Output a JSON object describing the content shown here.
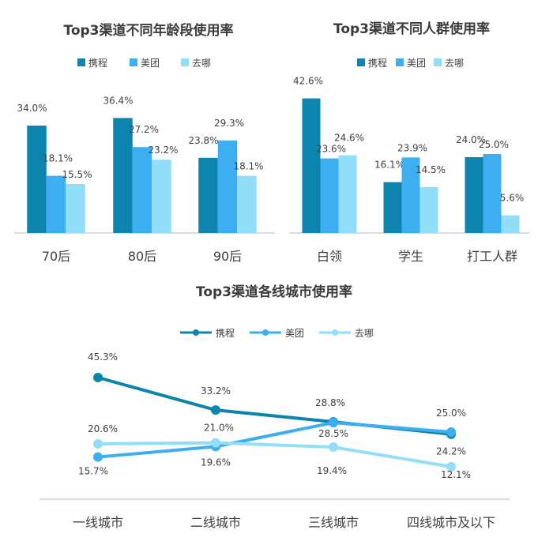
{
  "colors": {
    "ctrip": "#0D84AE",
    "meituan": "#3DAEF0",
    "qunar": "#92DDF7"
  },
  "chart_data": [
    {
      "type": "bar",
      "title": "Top3渠道不同年龄段使用率",
      "categories": [
        "70后",
        "80后",
        "90后"
      ],
      "ylim": [
        0,
        50
      ],
      "series": [
        {
          "name": "携程",
          "values": [
            34.0,
            36.4,
            23.8
          ],
          "labels": [
            "34.0%",
            "36.4%",
            "23.8%"
          ]
        },
        {
          "name": "美团",
          "values": [
            18.1,
            27.2,
            29.3
          ],
          "labels": [
            "18.1%",
            "27.2%",
            "29.3%"
          ]
        },
        {
          "name": "去哪",
          "values": [
            15.5,
            23.2,
            18.1
          ],
          "labels": [
            "15.5%",
            "23.2%",
            "18.1%"
          ]
        }
      ]
    },
    {
      "type": "bar",
      "title": "Top3渠道不同人群使用率",
      "categories": [
        "白领",
        "学生",
        "打工人群"
      ],
      "ylim": [
        0,
        50
      ],
      "series": [
        {
          "name": "携程",
          "values": [
            42.6,
            16.1,
            24.0
          ],
          "labels": [
            "42.6%",
            "16.1%",
            "24.0%"
          ]
        },
        {
          "name": "美团",
          "values": [
            23.6,
            23.9,
            25.0
          ],
          "labels": [
            "23.6%",
            "23.9%",
            "25.0%"
          ]
        },
        {
          "name": "去哪",
          "values": [
            24.6,
            14.5,
            5.6
          ],
          "labels": [
            "24.6%",
            "14.5%",
            "5.6%"
          ]
        }
      ]
    },
    {
      "type": "line",
      "title": "Top3渠道各线城市使用率",
      "categories": [
        "一线城市",
        "二线城市",
        "三线城市",
        "四线城市及以下"
      ],
      "ylim": [
        0,
        50
      ],
      "series": [
        {
          "name": "携程",
          "values": [
            45.3,
            33.2,
            28.8,
            24.2
          ],
          "labels": [
            "45.3%",
            "33.2%",
            "28.8%",
            "24.2%"
          ]
        },
        {
          "name": "美团",
          "values": [
            15.7,
            19.6,
            28.5,
            25.0
          ],
          "labels": [
            "15.7%",
            "19.6%",
            "28.5%",
            "25.0%"
          ]
        },
        {
          "name": "去哪",
          "values": [
            20.6,
            21.0,
            19.4,
            12.1
          ],
          "labels": [
            "20.6%",
            "21.0%",
            "19.4%",
            "12.1%"
          ]
        }
      ]
    }
  ]
}
